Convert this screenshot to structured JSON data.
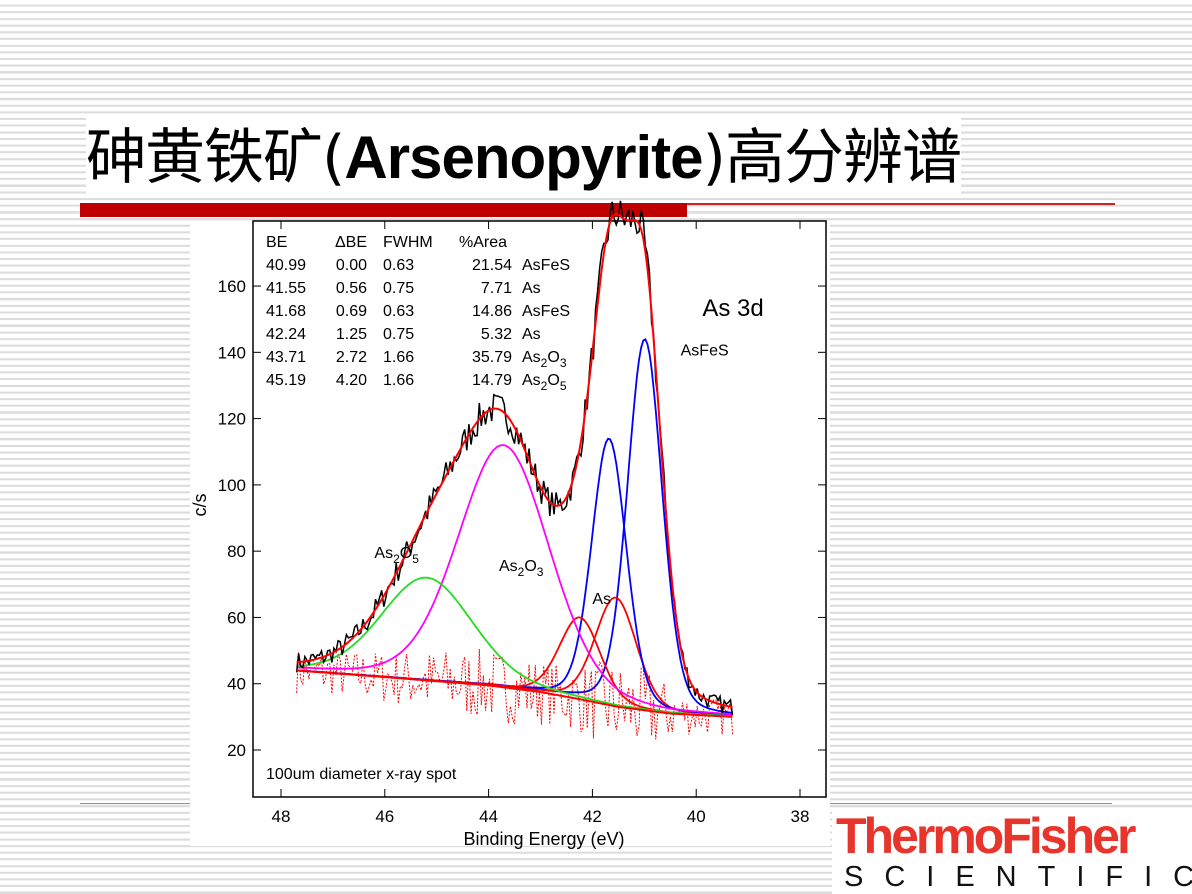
{
  "slide": {
    "title_cn_before": "砷黄铁矿(",
    "title_en": "Arsenopyrite",
    "title_cn_after": ")高分辨谱",
    "logo_top": "ThermoFisher",
    "logo_bottom": "SCIENTIFIC"
  },
  "chart_data": {
    "type": "line",
    "title": "As 3d",
    "xlabel": "Binding Energy (eV)",
    "ylabel": "c/s",
    "annotation": "100um diameter x-ray spot",
    "xlim": [
      48.5,
      37.5
    ],
    "x_reversed": true,
    "ylim": [
      6,
      180
    ],
    "x_ticks": [
      48,
      46,
      44,
      42,
      40,
      38
    ],
    "y_ticks": [
      20,
      40,
      60,
      80,
      100,
      120,
      140,
      160
    ],
    "grid": false,
    "table": {
      "headers": [
        "BE",
        "ΔBE",
        "FWHM",
        "%Area",
        ""
      ],
      "rows": [
        [
          "40.99",
          "0.00",
          "0.63",
          "21.54",
          "AsFeS"
        ],
        [
          "41.55",
          "0.56",
          "0.75",
          "7.71",
          "As"
        ],
        [
          "41.68",
          "0.69",
          "0.63",
          "14.86",
          "AsFeS"
        ],
        [
          "42.24",
          "1.25",
          "0.75",
          "5.32",
          "As"
        ],
        [
          "43.71",
          "2.72",
          "1.66",
          "35.79",
          "As2O3"
        ],
        [
          "45.19",
          "4.20",
          "1.66",
          "14.79",
          "As2O5"
        ]
      ]
    },
    "peak_labels": [
      {
        "text": "AsFeS",
        "x": 40.3,
        "y": 139
      },
      {
        "text": "As",
        "x": 42.0,
        "y": 64
      },
      {
        "base": "As",
        "sub1": "2",
        "mid": "O",
        "sub2": "3",
        "x": 43.8,
        "y": 74
      },
      {
        "base": "As",
        "sub1": "2",
        "mid": "O",
        "sub2": "5",
        "x": 46.2,
        "y": 78
      }
    ],
    "components": [
      {
        "label": "AsFeS",
        "be": 40.99,
        "height": 144,
        "color": "#0000ff"
      },
      {
        "label": "As",
        "be": 41.55,
        "height": 66,
        "color": "#ff0000"
      },
      {
        "label": "AsFeS",
        "be": 41.68,
        "height": 114,
        "color": "#0000ff"
      },
      {
        "label": "As",
        "be": 42.24,
        "height": 60,
        "color": "#ff0000"
      },
      {
        "label": "As2O3",
        "be": 43.71,
        "height": 112,
        "color": "#ff00ff"
      },
      {
        "label": "As2O5",
        "be": 45.19,
        "height": 72,
        "color": "#22dd22"
      }
    ],
    "background": [
      [
        47.7,
        44
      ],
      [
        46,
        42
      ],
      [
        44,
        39.5
      ],
      [
        43,
        37.5
      ],
      [
        42.3,
        35.5
      ],
      [
        41.5,
        33
      ],
      [
        40.5,
        31
      ],
      [
        39.3,
        30
      ]
    ],
    "envelope_color": "#ff0000",
    "raw_color": "#000000",
    "residual_color": "#ff0000",
    "data_range": [
      47.7,
      39.3
    ]
  }
}
